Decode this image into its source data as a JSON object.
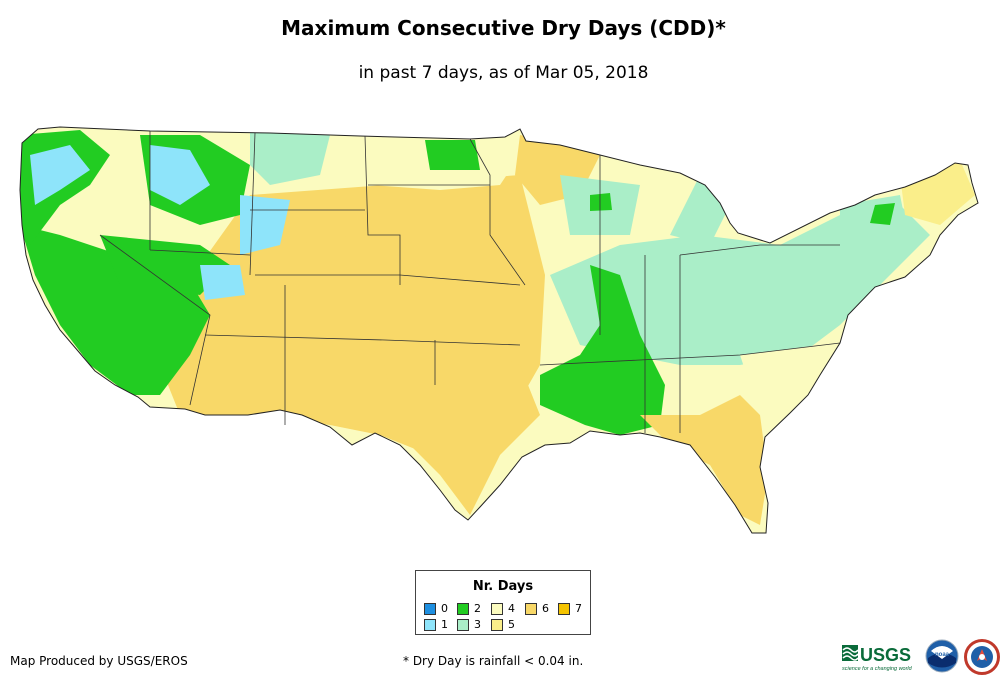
{
  "title": "Maximum Consecutive Dry Days (CDD)*",
  "subtitle": "in past 7 days, as of Mar 05, 2018",
  "legend": {
    "title": "Nr. Days",
    "items": [
      {
        "label": "0",
        "color": "#1e8fe0"
      },
      {
        "label": "1",
        "color": "#8ee4fa"
      },
      {
        "label": "2",
        "color": "#22cc22"
      },
      {
        "label": "3",
        "color": "#aaeec8"
      },
      {
        "label": "4",
        "color": "#fbfbbf"
      },
      {
        "label": "5",
        "color": "#faee8a"
      },
      {
        "label": "6",
        "color": "#f8d868"
      },
      {
        "label": "7",
        "color": "#f5c400"
      }
    ]
  },
  "footer": {
    "credit": "Map Produced by USGS/EROS",
    "footnote": "* Dry Day is rainfall < 0.04 in."
  },
  "logos": {
    "usgs_text": "USGS",
    "usgs_tagline": "science for a changing world",
    "noaa_text": "noaa"
  }
}
